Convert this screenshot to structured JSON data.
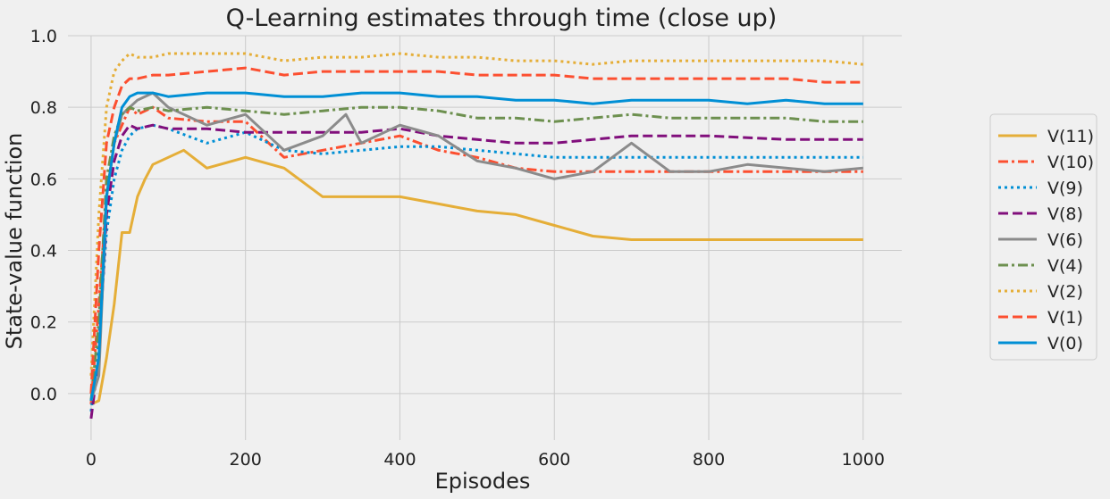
{
  "chart_data": {
    "type": "line",
    "title": "Q-Learning estimates through time (close up)",
    "xlabel": "Episodes",
    "ylabel": "State-value function",
    "xlim": [
      -30,
      1050
    ],
    "ylim": [
      -0.13,
      1.0
    ],
    "x_ticks": [
      0,
      200,
      400,
      600,
      800,
      1000
    ],
    "y_ticks": [
      0.0,
      0.2,
      0.4,
      0.6,
      0.8,
      1.0
    ],
    "grid": true,
    "legend_position": "right",
    "legend_order": [
      "V(11)",
      "V(10)",
      "V(9)",
      "V(8)",
      "V(6)",
      "V(4)",
      "V(2)",
      "V(1)",
      "V(0)"
    ],
    "series": [
      {
        "name": "V(11)",
        "color": "#e5ae38",
        "dash": "solid",
        "x": [
          0,
          10,
          20,
          30,
          40,
          50,
          60,
          70,
          80,
          100,
          120,
          150,
          200,
          250,
          300,
          350,
          400,
          450,
          500,
          550,
          600,
          650,
          700,
          800,
          900,
          1000
        ],
        "y": [
          -0.03,
          -0.02,
          0.1,
          0.25,
          0.45,
          0.45,
          0.55,
          0.6,
          0.64,
          0.66,
          0.68,
          0.63,
          0.66,
          0.63,
          0.55,
          0.55,
          0.55,
          0.53,
          0.51,
          0.5,
          0.47,
          0.44,
          0.43,
          0.43,
          0.43,
          0.43
        ]
      },
      {
        "name": "V(10)",
        "color": "#fc4f30",
        "dash": "dashdot",
        "x": [
          0,
          10,
          20,
          30,
          40,
          50,
          60,
          80,
          100,
          150,
          200,
          250,
          300,
          350,
          400,
          450,
          500,
          550,
          600,
          700,
          800,
          900,
          1000
        ],
        "y": [
          -0.03,
          0.25,
          0.55,
          0.7,
          0.75,
          0.8,
          0.78,
          0.8,
          0.77,
          0.76,
          0.76,
          0.66,
          0.68,
          0.7,
          0.72,
          0.68,
          0.66,
          0.63,
          0.62,
          0.62,
          0.62,
          0.62,
          0.62
        ]
      },
      {
        "name": "V(9)",
        "color": "#008fd5",
        "dash": "dotted",
        "x": [
          0,
          10,
          20,
          30,
          40,
          50,
          60,
          80,
          100,
          150,
          200,
          250,
          300,
          350,
          400,
          450,
          500,
          550,
          600,
          650,
          700,
          800,
          900,
          1000
        ],
        "y": [
          -0.05,
          0.15,
          0.45,
          0.6,
          0.68,
          0.72,
          0.74,
          0.75,
          0.74,
          0.7,
          0.73,
          0.68,
          0.67,
          0.68,
          0.69,
          0.69,
          0.68,
          0.67,
          0.66,
          0.66,
          0.66,
          0.66,
          0.66,
          0.66
        ]
      },
      {
        "name": "V(8)",
        "color": "#810f7c",
        "dash": "dashed",
        "x": [
          0,
          10,
          20,
          30,
          40,
          50,
          60,
          80,
          100,
          150,
          200,
          250,
          300,
          350,
          400,
          450,
          500,
          550,
          600,
          650,
          700,
          800,
          900,
          1000
        ],
        "y": [
          -0.07,
          0.1,
          0.5,
          0.65,
          0.72,
          0.75,
          0.74,
          0.75,
          0.74,
          0.74,
          0.73,
          0.73,
          0.73,
          0.73,
          0.74,
          0.72,
          0.71,
          0.7,
          0.7,
          0.71,
          0.72,
          0.72,
          0.71,
          0.71
        ]
      },
      {
        "name": "V(6)",
        "color": "#8b8b8b",
        "dash": "solid",
        "x": [
          0,
          10,
          20,
          30,
          40,
          50,
          60,
          80,
          100,
          120,
          150,
          200,
          250,
          300,
          330,
          350,
          400,
          450,
          500,
          550,
          600,
          650,
          700,
          750,
          800,
          850,
          900,
          950,
          1000
        ],
        "y": [
          -0.02,
          0.05,
          0.55,
          0.7,
          0.78,
          0.8,
          0.82,
          0.84,
          0.8,
          0.78,
          0.75,
          0.78,
          0.68,
          0.72,
          0.78,
          0.7,
          0.75,
          0.72,
          0.65,
          0.63,
          0.6,
          0.62,
          0.7,
          0.62,
          0.62,
          0.64,
          0.63,
          0.62,
          0.63
        ]
      },
      {
        "name": "V(4)",
        "color": "#6d904f",
        "dash": "dashdot",
        "x": [
          0,
          10,
          20,
          30,
          40,
          50,
          60,
          80,
          100,
          150,
          200,
          250,
          300,
          350,
          400,
          450,
          500,
          550,
          600,
          650,
          700,
          750,
          800,
          850,
          900,
          950,
          1000
        ],
        "y": [
          -0.02,
          0.2,
          0.6,
          0.72,
          0.78,
          0.8,
          0.79,
          0.8,
          0.79,
          0.8,
          0.79,
          0.78,
          0.79,
          0.8,
          0.8,
          0.79,
          0.77,
          0.77,
          0.76,
          0.77,
          0.78,
          0.77,
          0.77,
          0.77,
          0.77,
          0.76,
          0.76
        ]
      },
      {
        "name": "V(2)",
        "color": "#e5ae38",
        "dash": "dotted",
        "x": [
          0,
          10,
          20,
          30,
          40,
          50,
          60,
          80,
          100,
          150,
          200,
          250,
          300,
          350,
          400,
          450,
          500,
          550,
          600,
          650,
          700,
          750,
          800,
          850,
          900,
          950,
          1000
        ],
        "y": [
          0.05,
          0.5,
          0.8,
          0.9,
          0.93,
          0.95,
          0.94,
          0.94,
          0.95,
          0.95,
          0.95,
          0.93,
          0.94,
          0.94,
          0.95,
          0.94,
          0.94,
          0.93,
          0.93,
          0.92,
          0.93,
          0.93,
          0.93,
          0.93,
          0.93,
          0.93,
          0.92
        ]
      },
      {
        "name": "V(1)",
        "color": "#fc4f30",
        "dash": "dashed",
        "x": [
          0,
          10,
          20,
          30,
          40,
          50,
          60,
          80,
          100,
          150,
          200,
          250,
          300,
          350,
          400,
          450,
          500,
          550,
          600,
          650,
          700,
          750,
          800,
          850,
          900,
          950,
          1000
        ],
        "y": [
          0.0,
          0.4,
          0.7,
          0.8,
          0.86,
          0.88,
          0.88,
          0.89,
          0.89,
          0.9,
          0.91,
          0.89,
          0.9,
          0.9,
          0.9,
          0.9,
          0.89,
          0.89,
          0.89,
          0.88,
          0.88,
          0.88,
          0.88,
          0.88,
          0.88,
          0.87,
          0.87
        ]
      },
      {
        "name": "V(0)",
        "color": "#008fd5",
        "dash": "solid",
        "x": [
          0,
          10,
          20,
          30,
          40,
          50,
          60,
          80,
          100,
          150,
          200,
          250,
          300,
          350,
          400,
          450,
          500,
          550,
          600,
          650,
          700,
          750,
          800,
          850,
          900,
          950,
          1000
        ],
        "y": [
          -0.02,
          0.1,
          0.55,
          0.7,
          0.8,
          0.83,
          0.84,
          0.84,
          0.83,
          0.84,
          0.84,
          0.83,
          0.83,
          0.84,
          0.84,
          0.83,
          0.83,
          0.82,
          0.82,
          0.81,
          0.82,
          0.82,
          0.82,
          0.81,
          0.82,
          0.81,
          0.81
        ]
      }
    ]
  }
}
